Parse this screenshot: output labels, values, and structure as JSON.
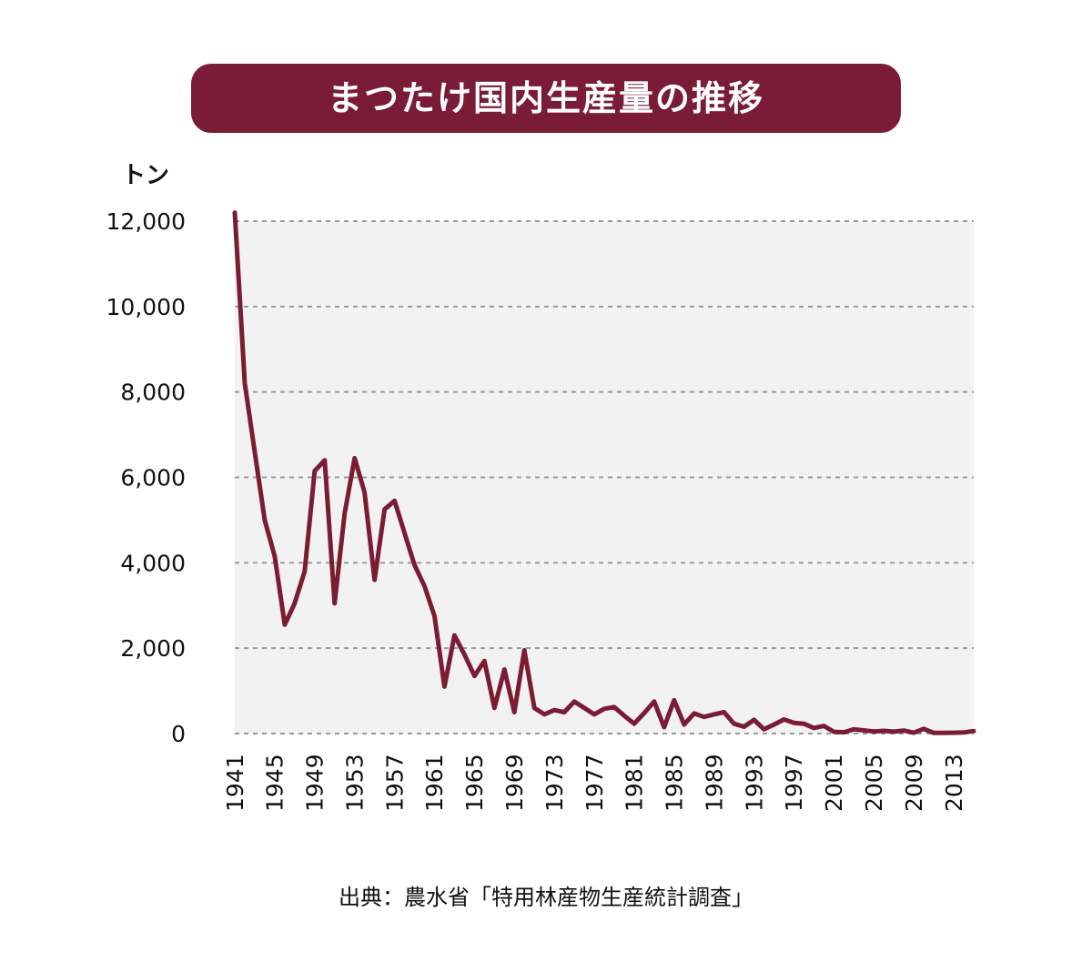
{
  "title": "まつたけ国内生産量の推移",
  "unit_label": "トン",
  "source": "出典：農水省「特用林産物生産統計調査」",
  "colors": {
    "accent": "#7b1c36",
    "line": "#7b1c36",
    "plot_bg": "#f2f2f2",
    "grid": "#9a9a9a"
  },
  "chart_data": {
    "type": "line",
    "title": "まつたけ国内生産量の推移",
    "ylabel": "トン",
    "xlabel": "",
    "ylim": [
      0,
      12000
    ],
    "xlim": [
      1941,
      2015
    ],
    "grid": true,
    "y_ticks": [
      {
        "value": 0,
        "label": "0"
      },
      {
        "value": 2000,
        "label": "2,000"
      },
      {
        "value": 4000,
        "label": "4,000"
      },
      {
        "value": 6000,
        "label": "6,000"
      },
      {
        "value": 8000,
        "label": "8,000"
      },
      {
        "value": 10000,
        "label": "10,000"
      },
      {
        "value": 12000,
        "label": "12,000"
      }
    ],
    "x_ticks": [
      {
        "value": 1941,
        "label": "1941"
      },
      {
        "value": 1945,
        "label": "1945"
      },
      {
        "value": 1949,
        "label": "1949"
      },
      {
        "value": 1953,
        "label": "1953"
      },
      {
        "value": 1957,
        "label": "1957"
      },
      {
        "value": 1961,
        "label": "1961"
      },
      {
        "value": 1965,
        "label": "1965"
      },
      {
        "value": 1969,
        "label": "1969"
      },
      {
        "value": 1973,
        "label": "1973"
      },
      {
        "value": 1977,
        "label": "1977"
      },
      {
        "value": 1981,
        "label": "1981"
      },
      {
        "value": 1985,
        "label": "1985"
      },
      {
        "value": 1989,
        "label": "1989"
      },
      {
        "value": 1993,
        "label": "1993"
      },
      {
        "value": 1997,
        "label": "1997"
      },
      {
        "value": 2001,
        "label": "2001"
      },
      {
        "value": 2005,
        "label": "2005"
      },
      {
        "value": 2009,
        "label": "2009"
      },
      {
        "value": 2013,
        "label": "2013"
      }
    ],
    "series": [
      {
        "values": [
          [
            1941,
            12200
          ],
          [
            1942,
            8200
          ],
          [
            1943,
            6600
          ],
          [
            1944,
            5000
          ],
          [
            1945,
            4150
          ],
          [
            1946,
            2550
          ],
          [
            1947,
            3050
          ],
          [
            1948,
            3800
          ],
          [
            1949,
            6150
          ],
          [
            1950,
            6400
          ],
          [
            1951,
            3050
          ],
          [
            1952,
            5150
          ],
          [
            1953,
            6450
          ],
          [
            1954,
            5650
          ],
          [
            1955,
            3600
          ],
          [
            1956,
            5250
          ],
          [
            1957,
            5450
          ],
          [
            1958,
            4700
          ],
          [
            1959,
            3950
          ],
          [
            1960,
            3450
          ],
          [
            1961,
            2750
          ],
          [
            1962,
            1100
          ],
          [
            1963,
            2300
          ],
          [
            1964,
            1850
          ],
          [
            1965,
            1350
          ],
          [
            1966,
            1700
          ],
          [
            1967,
            600
          ],
          [
            1968,
            1500
          ],
          [
            1969,
            500
          ],
          [
            1970,
            1950
          ],
          [
            1971,
            600
          ],
          [
            1972,
            450
          ],
          [
            1973,
            550
          ],
          [
            1974,
            500
          ],
          [
            1975,
            750
          ],
          [
            1976,
            600
          ],
          [
            1977,
            450
          ],
          [
            1978,
            580
          ],
          [
            1979,
            620
          ],
          [
            1980,
            420
          ],
          [
            1981,
            230
          ],
          [
            1982,
            480
          ],
          [
            1983,
            750
          ],
          [
            1984,
            150
          ],
          [
            1985,
            780
          ],
          [
            1986,
            210
          ],
          [
            1987,
            470
          ],
          [
            1988,
            390
          ],
          [
            1989,
            450
          ],
          [
            1990,
            500
          ],
          [
            1991,
            230
          ],
          [
            1992,
            160
          ],
          [
            1993,
            320
          ],
          [
            1994,
            100
          ],
          [
            1995,
            210
          ],
          [
            1996,
            330
          ],
          [
            1997,
            250
          ],
          [
            1998,
            230
          ],
          [
            1999,
            130
          ],
          [
            2000,
            180
          ],
          [
            2001,
            40
          ],
          [
            2002,
            30
          ],
          [
            2003,
            100
          ],
          [
            2004,
            75
          ],
          [
            2005,
            50
          ],
          [
            2006,
            65
          ],
          [
            2007,
            45
          ],
          [
            2008,
            70
          ],
          [
            2009,
            20
          ],
          [
            2010,
            110
          ],
          [
            2011,
            15
          ],
          [
            2012,
            15
          ],
          [
            2013,
            20
          ],
          [
            2014,
            25
          ],
          [
            2015,
            60
          ]
        ]
      }
    ]
  }
}
